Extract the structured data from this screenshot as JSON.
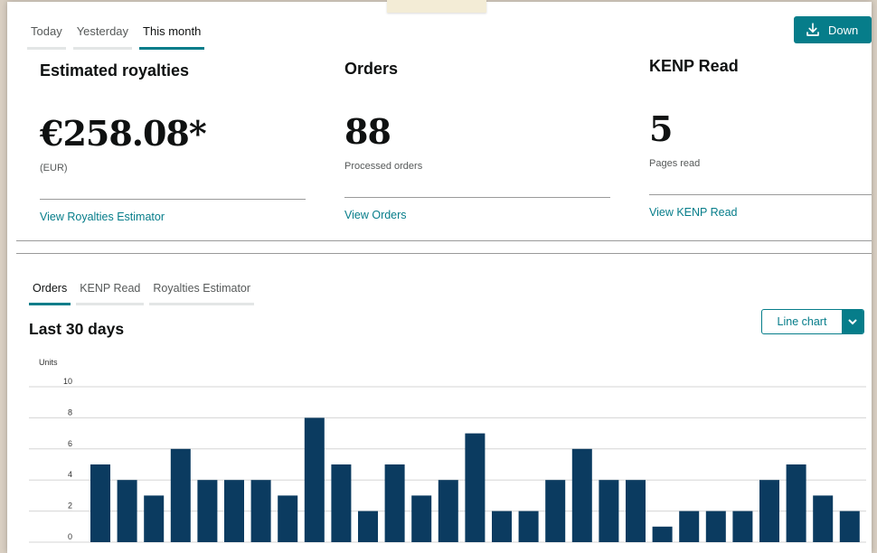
{
  "top_tabs": [
    "Today",
    "Yesterday",
    "This month"
  ],
  "download_label": "Down",
  "cards": [
    {
      "title": "Estimated royalties",
      "value": "€258.08*",
      "sub": "(EUR)",
      "link": "View Royalties Estimator"
    },
    {
      "title": "Orders",
      "value": "88",
      "sub": "Processed orders",
      "link": "View Orders"
    },
    {
      "title": "KENP Read",
      "value": "5",
      "sub": "Pages read",
      "link": "View KENP Read"
    }
  ],
  "chart_tabs": [
    "Orders",
    "KENP Read",
    "Royalties Estimator"
  ],
  "chart_heading": "Last 30 days",
  "chart_type_label": "Line chart",
  "colors": {
    "accent": "#067d8a",
    "bar": "#0b3b60"
  },
  "icons": {
    "download": "download-icon",
    "caret": "chevron-down-icon"
  },
  "chart_data": {
    "type": "bar",
    "ylabel": "Units",
    "ylim": [
      0,
      10
    ],
    "yticks": [
      "0",
      "2",
      "4",
      "6",
      "8",
      "10"
    ],
    "values": [
      5,
      4,
      3,
      6,
      4,
      4,
      4,
      3,
      8,
      5,
      2,
      5,
      3,
      4,
      7,
      2,
      2,
      4,
      6,
      4,
      4,
      1,
      2,
      2,
      2,
      4,
      5,
      3,
      2
    ]
  }
}
